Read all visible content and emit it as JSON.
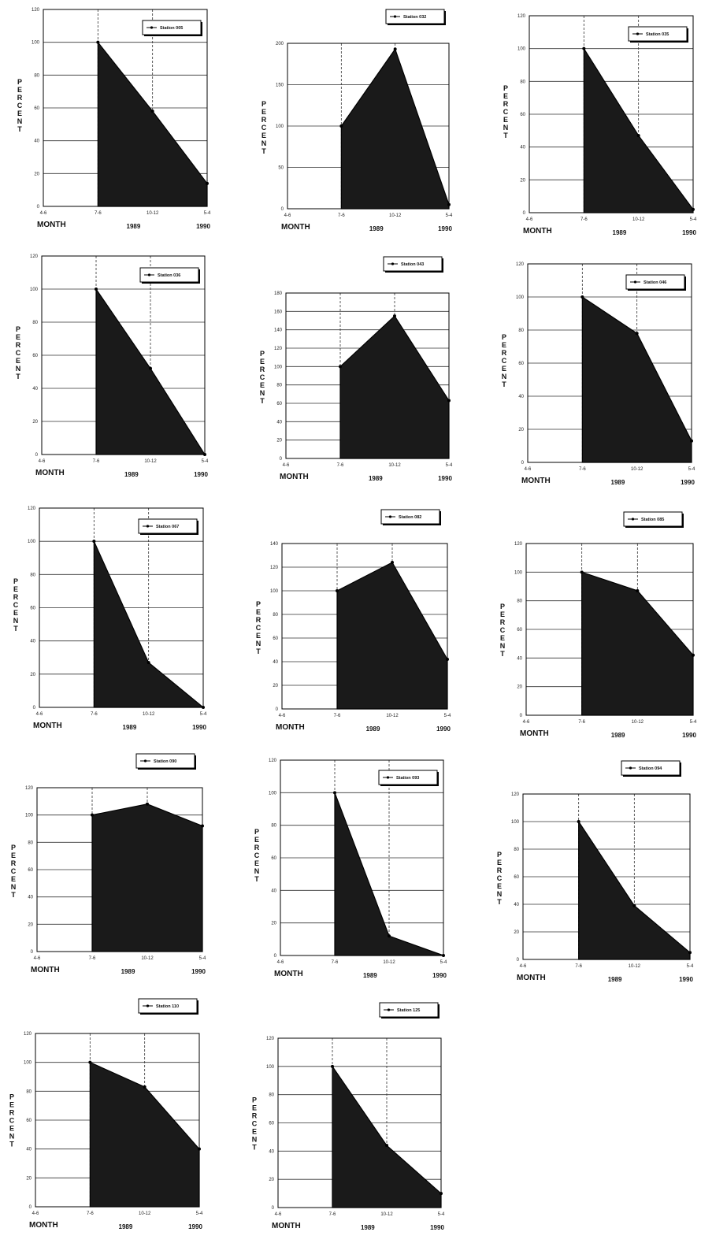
{
  "chart_data": [
    {
      "type": "area",
      "legend": "Station 005",
      "categories": [
        "4-6",
        "7-6",
        "10-12",
        "5-4"
      ],
      "values": [
        null,
        100,
        58,
        14
      ],
      "ylim": [
        0,
        120
      ],
      "yticks": [
        0,
        20,
        40,
        60,
        80,
        100,
        120
      ],
      "xlabel": "MONTH",
      "ylabel": "PERCENT",
      "years": [
        "1989",
        "1990"
      ]
    },
    {
      "type": "area",
      "legend": "Station 032",
      "categories": [
        "4-6",
        "7-6",
        "10-12",
        "5-4"
      ],
      "values": [
        null,
        100,
        193,
        5
      ],
      "ylim": [
        0,
        200
      ],
      "yticks": [
        0,
        50,
        100,
        150,
        200
      ],
      "xlabel": "MONTH",
      "ylabel": "PERCENT",
      "years": [
        "1989",
        "1990"
      ]
    },
    {
      "type": "area",
      "legend": "Station 035",
      "categories": [
        "4-6",
        "7-6",
        "10-12",
        "5-4"
      ],
      "values": [
        null,
        100,
        47,
        2
      ],
      "ylim": [
        0,
        120
      ],
      "yticks": [
        0,
        20,
        40,
        60,
        80,
        100,
        120
      ],
      "xlabel": "MONTH",
      "ylabel": "PERCENT",
      "years": [
        "1989",
        "1990"
      ]
    },
    {
      "type": "area",
      "legend": "Station 036",
      "categories": [
        "4-6",
        "7-6",
        "10-12",
        "5-4"
      ],
      "values": [
        null,
        100,
        52,
        0
      ],
      "ylim": [
        0,
        120
      ],
      "yticks": [
        0,
        20,
        40,
        60,
        80,
        100,
        120
      ],
      "xlabel": "MONTH",
      "ylabel": "PERCENT",
      "years": [
        "1989",
        "1990"
      ]
    },
    {
      "type": "area",
      "legend": "Station 043",
      "categories": [
        "4-6",
        "7-6",
        "10-12",
        "5-4"
      ],
      "values": [
        null,
        100,
        155,
        63
      ],
      "ylim": [
        0,
        180
      ],
      "yticks": [
        0,
        20,
        40,
        60,
        80,
        100,
        120,
        140,
        160,
        180
      ],
      "xlabel": "MONTH",
      "ylabel": "PERCENT",
      "years": [
        "1989",
        "1990"
      ]
    },
    {
      "type": "area",
      "legend": "Station 046",
      "categories": [
        "4-6",
        "7-6",
        "10-12",
        "5-4"
      ],
      "values": [
        null,
        100,
        78,
        13
      ],
      "ylim": [
        0,
        120
      ],
      "yticks": [
        0,
        20,
        40,
        60,
        80,
        100,
        120
      ],
      "xlabel": "MONTH",
      "ylabel": "PERCENT",
      "years": [
        "1989",
        "1990"
      ]
    },
    {
      "type": "area",
      "legend": "Station 067",
      "categories": [
        "4-6",
        "7-6",
        "10-12",
        "5-4"
      ],
      "values": [
        null,
        100,
        27,
        0
      ],
      "ylim": [
        0,
        120
      ],
      "yticks": [
        0,
        20,
        40,
        60,
        80,
        100,
        120
      ],
      "xlabel": "MONTH",
      "ylabel": "PERCENT",
      "years": [
        "1989",
        "1990"
      ]
    },
    {
      "type": "area",
      "legend": "Station 082",
      "categories": [
        "4-6",
        "7-6",
        "10-12",
        "5-4"
      ],
      "values": [
        null,
        100,
        124,
        42
      ],
      "ylim": [
        0,
        140
      ],
      "yticks": [
        0,
        20,
        40,
        60,
        80,
        100,
        120,
        140
      ],
      "xlabel": "MONTH",
      "ylabel": "PERCENT",
      "years": [
        "1989",
        "1990"
      ]
    },
    {
      "type": "area",
      "legend": "Station 085",
      "categories": [
        "4-6",
        "7-6",
        "10-12",
        "5-4"
      ],
      "values": [
        null,
        100,
        87,
        42
      ],
      "ylim": [
        0,
        120
      ],
      "yticks": [
        0,
        20,
        40,
        60,
        80,
        100,
        120
      ],
      "xlabel": "MONTH",
      "ylabel": "PERCENT",
      "years": [
        "1989",
        "1990"
      ]
    },
    {
      "type": "area",
      "legend": "Station 090",
      "categories": [
        "4-6",
        "7-6",
        "10-12",
        "5-4"
      ],
      "values": [
        null,
        100,
        108,
        92
      ],
      "ylim": [
        0,
        120
      ],
      "yticks": [
        0,
        20,
        40,
        60,
        80,
        100,
        120
      ],
      "xlabel": "MONTH",
      "ylabel": "PERCENT",
      "years": [
        "1989",
        "1990"
      ]
    },
    {
      "type": "area",
      "legend": "Station 093",
      "categories": [
        "4-6",
        "7-6",
        "10-12",
        "5-4"
      ],
      "values": [
        null,
        100,
        12,
        0
      ],
      "ylim": [
        0,
        120
      ],
      "yticks": [
        0,
        20,
        40,
        60,
        80,
        100,
        120
      ],
      "xlabel": "MONTH",
      "ylabel": "PERCENT",
      "years": [
        "1989",
        "1990"
      ]
    },
    {
      "type": "area",
      "legend": "Station 094",
      "categories": [
        "4-6",
        "7-6",
        "10-12",
        "5-4"
      ],
      "values": [
        null,
        100,
        39,
        5
      ],
      "ylim": [
        0,
        120
      ],
      "yticks": [
        0,
        20,
        40,
        60,
        80,
        100,
        120
      ],
      "xlabel": "MONTH",
      "ylabel": "PERCENT",
      "years": [
        "1989",
        "1990"
      ]
    },
    {
      "type": "area",
      "legend": "Station 110",
      "categories": [
        "4-6",
        "7-6",
        "10-12",
        "5-4"
      ],
      "values": [
        null,
        100,
        83,
        40
      ],
      "ylim": [
        0,
        120
      ],
      "yticks": [
        0,
        20,
        40,
        60,
        80,
        100,
        120
      ],
      "xlabel": "MONTH",
      "ylabel": "PERCENT",
      "years": [
        "1989",
        "1990"
      ]
    },
    {
      "type": "area",
      "legend": "Station 125",
      "categories": [
        "4-6",
        "7-6",
        "10-12",
        "5-4"
      ],
      "values": [
        null,
        100,
        44,
        10
      ],
      "ylim": [
        0,
        120
      ],
      "yticks": [
        0,
        20,
        40,
        60,
        80,
        100,
        120
      ],
      "xlabel": "MONTH",
      "ylabel": "PERCENT",
      "years": [
        "1989",
        "1990"
      ]
    }
  ],
  "colors": {
    "fill": "#1a1a1a",
    "line": "#000000",
    "grid": "#333333",
    "background": "#ffffff"
  }
}
